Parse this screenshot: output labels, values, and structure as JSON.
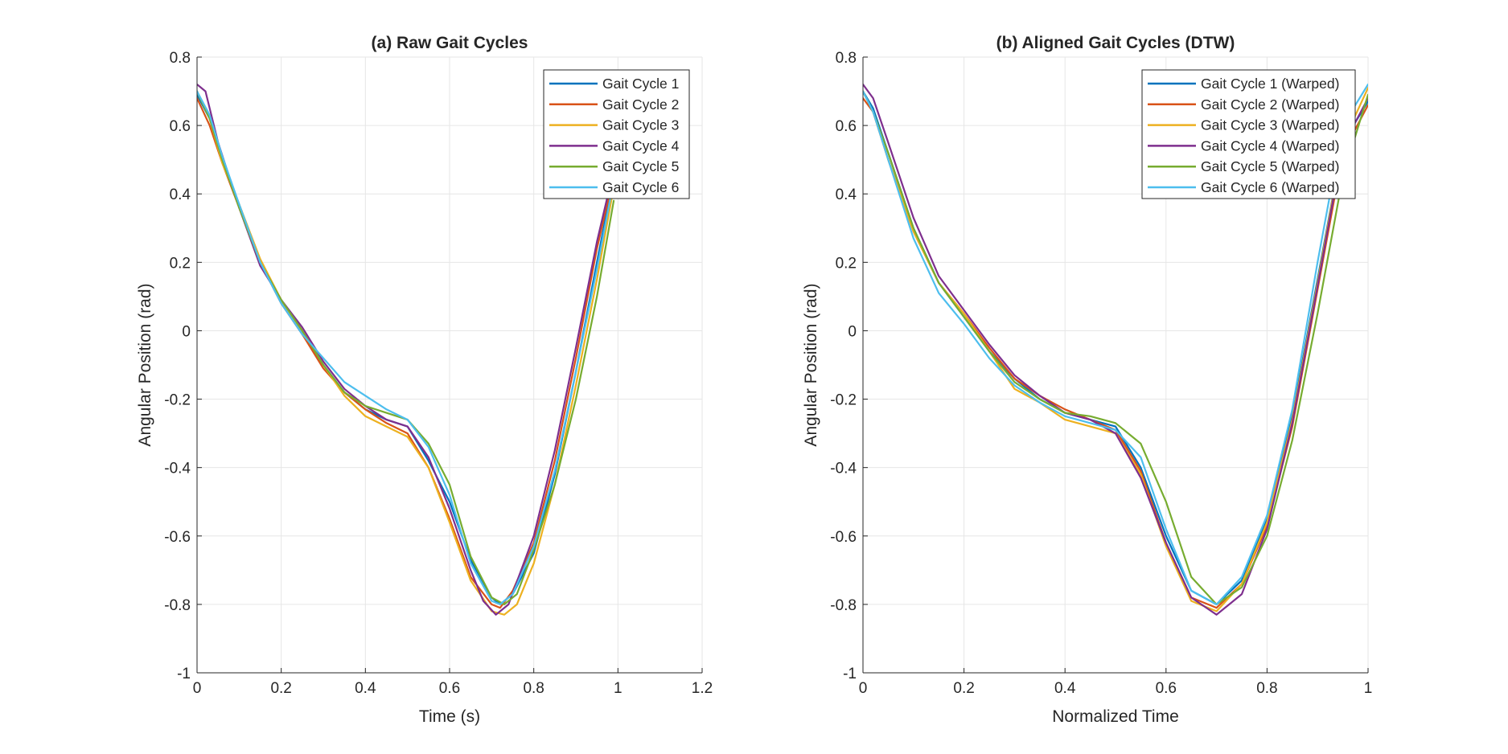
{
  "chart_data": [
    {
      "type": "line",
      "title": "(a) Raw Gait Cycles",
      "xlabel": "Time (s)",
      "ylabel": "Angular Position (rad)",
      "xlim": [
        0,
        1.2
      ],
      "ylim": [
        -1,
        0.8
      ],
      "xticks": [
        0,
        0.2,
        0.4,
        0.6,
        0.8,
        1,
        1.2
      ],
      "xtick_labels": [
        "0",
        "0.2",
        "0.4",
        "0.6",
        "0.8",
        "1",
        "1.2"
      ],
      "yticks": [
        -1,
        -0.8,
        -0.6,
        -0.4,
        -0.2,
        0,
        0.2,
        0.4,
        0.6,
        0.8
      ],
      "ytick_labels": [
        "-1",
        "-0.8",
        "-0.6",
        "-0.4",
        "-0.2",
        "0",
        "0.2",
        "0.4",
        "0.6",
        "0.8"
      ],
      "grid": true,
      "legend": "top-right",
      "series": [
        {
          "name": "Gait Cycle 1",
          "color": "#0072BD",
          "x": [
            0,
            0.03,
            0.06,
            0.1,
            0.15,
            0.2,
            0.25,
            0.3,
            0.35,
            0.4,
            0.45,
            0.5,
            0.55,
            0.6,
            0.65,
            0.7,
            0.72,
            0.75,
            0.8,
            0.85,
            0.9,
            0.95,
            0.99
          ],
          "y": [
            0.69,
            0.62,
            0.5,
            0.37,
            0.2,
            0.08,
            -0.01,
            -0.1,
            -0.18,
            -0.23,
            -0.26,
            -0.28,
            -0.38,
            -0.5,
            -0.67,
            -0.78,
            -0.8,
            -0.77,
            -0.65,
            -0.42,
            -0.12,
            0.2,
            0.45
          ]
        },
        {
          "name": "Gait Cycle 2",
          "color": "#D95319",
          "x": [
            0,
            0.03,
            0.06,
            0.1,
            0.15,
            0.2,
            0.25,
            0.3,
            0.35,
            0.4,
            0.45,
            0.5,
            0.55,
            0.6,
            0.65,
            0.7,
            0.72,
            0.75,
            0.8,
            0.85,
            0.9,
            0.95,
            0.99
          ],
          "y": [
            0.68,
            0.6,
            0.49,
            0.36,
            0.2,
            0.08,
            -0.01,
            -0.11,
            -0.18,
            -0.23,
            -0.27,
            -0.3,
            -0.4,
            -0.55,
            -0.72,
            -0.8,
            -0.81,
            -0.76,
            -0.62,
            -0.38,
            -0.08,
            0.24,
            0.45
          ]
        },
        {
          "name": "Gait Cycle 3",
          "color": "#EDB120",
          "x": [
            0,
            0.03,
            0.06,
            0.1,
            0.15,
            0.2,
            0.25,
            0.3,
            0.35,
            0.4,
            0.45,
            0.5,
            0.55,
            0.6,
            0.65,
            0.7,
            0.73,
            0.76,
            0.8,
            0.85,
            0.9,
            0.95,
            0.99
          ],
          "y": [
            0.7,
            0.62,
            0.49,
            0.37,
            0.21,
            0.09,
            0.0,
            -0.1,
            -0.19,
            -0.25,
            -0.28,
            -0.31,
            -0.4,
            -0.56,
            -0.73,
            -0.82,
            -0.83,
            -0.8,
            -0.68,
            -0.45,
            -0.16,
            0.15,
            0.42
          ]
        },
        {
          "name": "Gait Cycle 4",
          "color": "#7E2F8E",
          "x": [
            0,
            0.02,
            0.05,
            0.1,
            0.15,
            0.2,
            0.25,
            0.3,
            0.35,
            0.4,
            0.45,
            0.5,
            0.55,
            0.6,
            0.65,
            0.68,
            0.71,
            0.74,
            0.8,
            0.85,
            0.9,
            0.95,
            0.99
          ],
          "y": [
            0.72,
            0.7,
            0.55,
            0.36,
            0.19,
            0.09,
            0.01,
            -0.09,
            -0.17,
            -0.22,
            -0.26,
            -0.28,
            -0.37,
            -0.52,
            -0.7,
            -0.79,
            -0.83,
            -0.8,
            -0.6,
            -0.35,
            -0.05,
            0.26,
            0.47
          ]
        },
        {
          "name": "Gait Cycle 5",
          "color": "#77AC30",
          "x": [
            0,
            0.03,
            0.06,
            0.1,
            0.15,
            0.2,
            0.25,
            0.3,
            0.35,
            0.4,
            0.45,
            0.5,
            0.55,
            0.6,
            0.65,
            0.7,
            0.73,
            0.76,
            0.8,
            0.85,
            0.9,
            0.95,
            0.99
          ],
          "y": [
            0.7,
            0.62,
            0.5,
            0.36,
            0.2,
            0.09,
            0.0,
            -0.1,
            -0.18,
            -0.22,
            -0.24,
            -0.26,
            -0.33,
            -0.45,
            -0.66,
            -0.78,
            -0.8,
            -0.77,
            -0.64,
            -0.45,
            -0.2,
            0.1,
            0.38
          ]
        },
        {
          "name": "Gait Cycle 6",
          "color": "#4DBEEE",
          "x": [
            0,
            0.03,
            0.06,
            0.1,
            0.15,
            0.2,
            0.25,
            0.3,
            0.35,
            0.4,
            0.45,
            0.5,
            0.55,
            0.6,
            0.65,
            0.7,
            0.72,
            0.75,
            0.8,
            0.85,
            0.9,
            0.95,
            0.99
          ],
          "y": [
            0.7,
            0.63,
            0.51,
            0.37,
            0.2,
            0.08,
            -0.01,
            -0.08,
            -0.15,
            -0.19,
            -0.23,
            -0.26,
            -0.34,
            -0.48,
            -0.68,
            -0.79,
            -0.8,
            -0.77,
            -0.63,
            -0.41,
            -0.12,
            0.18,
            0.44
          ]
        }
      ]
    },
    {
      "type": "line",
      "title": "(b) Aligned Gait Cycles (DTW)",
      "xlabel": "Normalized Time",
      "ylabel": "Angular Position (rad)",
      "xlim": [
        0,
        1
      ],
      "ylim": [
        -1,
        0.8
      ],
      "xticks": [
        0,
        0.2,
        0.4,
        0.6,
        0.8,
        1
      ],
      "xtick_labels": [
        "0",
        "0.2",
        "0.4",
        "0.6",
        "0.8",
        "1"
      ],
      "yticks": [
        -1,
        -0.8,
        -0.6,
        -0.4,
        -0.2,
        0,
        0.2,
        0.4,
        0.6,
        0.8
      ],
      "ytick_labels": [
        "-1",
        "-0.8",
        "-0.6",
        "-0.4",
        "-0.2",
        "0",
        "0.2",
        "0.4",
        "0.6",
        "0.8"
      ],
      "grid": true,
      "legend": "top-right",
      "series": [
        {
          "name": "Gait Cycle 1 (Warped)",
          "color": "#0072BD",
          "x": [
            0,
            0.02,
            0.05,
            0.1,
            0.15,
            0.2,
            0.25,
            0.3,
            0.35,
            0.4,
            0.45,
            0.5,
            0.55,
            0.6,
            0.65,
            0.7,
            0.75,
            0.8,
            0.85,
            0.9,
            0.95,
            1
          ],
          "y": [
            0.7,
            0.65,
            0.52,
            0.3,
            0.14,
            0.04,
            -0.06,
            -0.14,
            -0.2,
            -0.24,
            -0.26,
            -0.28,
            -0.4,
            -0.6,
            -0.76,
            -0.8,
            -0.73,
            -0.55,
            -0.25,
            0.15,
            0.55,
            0.67
          ]
        },
        {
          "name": "Gait Cycle 2 (Warped)",
          "color": "#D95319",
          "x": [
            0,
            0.02,
            0.05,
            0.1,
            0.15,
            0.2,
            0.25,
            0.3,
            0.35,
            0.4,
            0.45,
            0.5,
            0.55,
            0.6,
            0.65,
            0.7,
            0.75,
            0.8,
            0.85,
            0.9,
            0.95,
            1
          ],
          "y": [
            0.68,
            0.64,
            0.5,
            0.29,
            0.14,
            0.05,
            -0.05,
            -0.14,
            -0.19,
            -0.23,
            -0.26,
            -0.29,
            -0.41,
            -0.62,
            -0.78,
            -0.81,
            -0.74,
            -0.57,
            -0.28,
            0.12,
            0.52,
            0.66
          ]
        },
        {
          "name": "Gait Cycle 3 (Warped)",
          "color": "#EDB120",
          "x": [
            0,
            0.02,
            0.05,
            0.1,
            0.15,
            0.2,
            0.25,
            0.3,
            0.35,
            0.4,
            0.45,
            0.5,
            0.55,
            0.6,
            0.65,
            0.7,
            0.75,
            0.8,
            0.85,
            0.9,
            0.95,
            1
          ],
          "y": [
            0.7,
            0.64,
            0.5,
            0.29,
            0.14,
            0.05,
            -0.06,
            -0.17,
            -0.21,
            -0.26,
            -0.28,
            -0.3,
            -0.42,
            -0.63,
            -0.79,
            -0.82,
            -0.74,
            -0.56,
            -0.26,
            0.14,
            0.55,
            0.71
          ]
        },
        {
          "name": "Gait Cycle 4 (Warped)",
          "color": "#7E2F8E",
          "x": [
            0,
            0.02,
            0.05,
            0.1,
            0.15,
            0.2,
            0.25,
            0.3,
            0.35,
            0.4,
            0.45,
            0.5,
            0.55,
            0.6,
            0.65,
            0.7,
            0.75,
            0.8,
            0.85,
            0.9,
            0.95,
            1
          ],
          "y": [
            0.72,
            0.68,
            0.55,
            0.33,
            0.16,
            0.06,
            -0.04,
            -0.13,
            -0.19,
            -0.24,
            -0.26,
            -0.3,
            -0.43,
            -0.62,
            -0.78,
            -0.83,
            -0.77,
            -0.58,
            -0.27,
            0.13,
            0.54,
            0.68
          ]
        },
        {
          "name": "Gait Cycle 5 (Warped)",
          "color": "#77AC30",
          "x": [
            0,
            0.02,
            0.05,
            0.1,
            0.15,
            0.2,
            0.25,
            0.3,
            0.35,
            0.4,
            0.45,
            0.5,
            0.55,
            0.6,
            0.65,
            0.7,
            0.75,
            0.8,
            0.85,
            0.9,
            0.95,
            1
          ],
          "y": [
            0.7,
            0.64,
            0.52,
            0.3,
            0.14,
            0.04,
            -0.06,
            -0.15,
            -0.2,
            -0.24,
            -0.25,
            -0.27,
            -0.33,
            -0.5,
            -0.72,
            -0.8,
            -0.75,
            -0.6,
            -0.32,
            0.05,
            0.45,
            0.69
          ]
        },
        {
          "name": "Gait Cycle 6 (Warped)",
          "color": "#4DBEEE",
          "x": [
            0,
            0.02,
            0.05,
            0.1,
            0.15,
            0.2,
            0.25,
            0.3,
            0.35,
            0.4,
            0.45,
            0.5,
            0.55,
            0.6,
            0.65,
            0.7,
            0.75,
            0.8,
            0.85,
            0.9,
            0.95,
            1
          ],
          "y": [
            0.7,
            0.64,
            0.5,
            0.27,
            0.11,
            0.02,
            -0.08,
            -0.16,
            -0.21,
            -0.25,
            -0.27,
            -0.29,
            -0.37,
            -0.58,
            -0.76,
            -0.8,
            -0.72,
            -0.54,
            -0.23,
            0.2,
            0.6,
            0.72
          ]
        }
      ]
    }
  ]
}
